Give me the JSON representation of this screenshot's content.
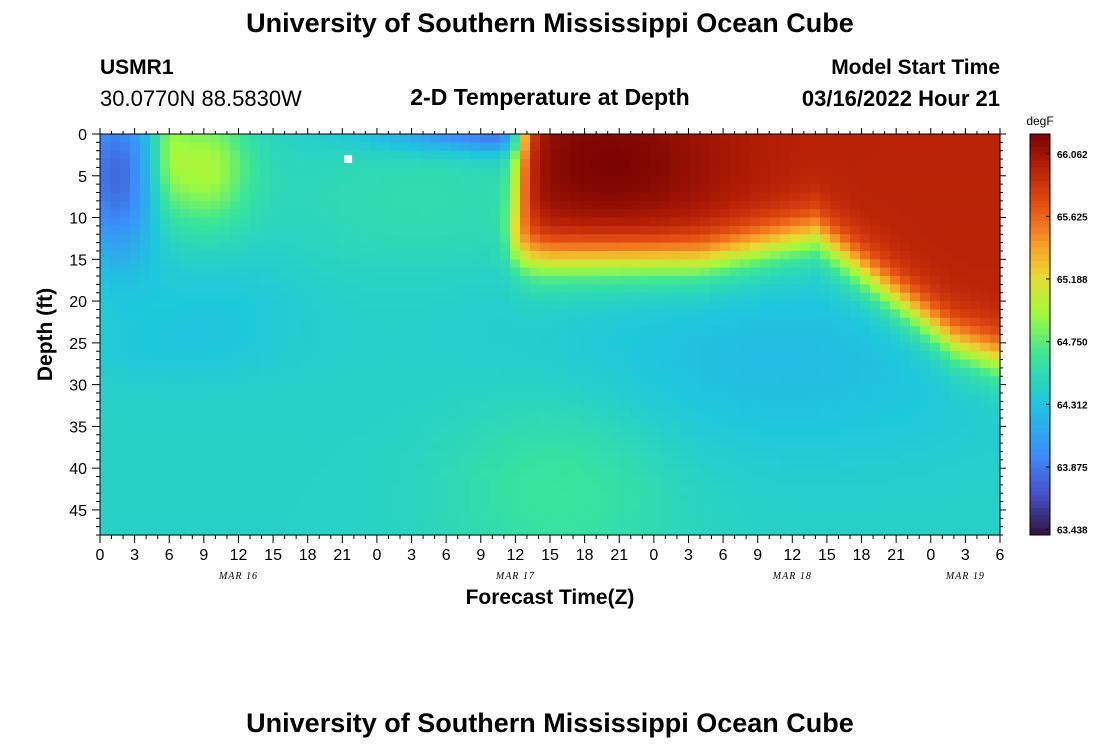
{
  "header": {
    "title": "University of Southern Mississippi Ocean Cube",
    "station_id": "USMR1",
    "station_coords": "30.0770N  88.5830W",
    "plot_subtitle": "2-D Temperature at Depth",
    "model_label": "Model Start Time",
    "model_time": "03/16/2022 Hour 21"
  },
  "footer": {
    "title": "University of Southern Mississippi Ocean Cube"
  },
  "chart_data": {
    "type": "heatmap",
    "title": "2-D Temperature at Depth",
    "xlabel": "Forecast Time(Z)",
    "ylabel": "Depth (ft)",
    "x_ticks": [
      "0",
      "3",
      "6",
      "9",
      "12",
      "15",
      "18",
      "21",
      "0",
      "3",
      "6",
      "9",
      "12",
      "15",
      "18",
      "21",
      "0",
      "3",
      "6",
      "9",
      "12",
      "15",
      "18",
      "21",
      "0",
      "3",
      "6"
    ],
    "x_range_hours": [
      0,
      78
    ],
    "date_labels": [
      {
        "hour": 12,
        "label": "MAR 16"
      },
      {
        "hour": 36,
        "label": "MAR 17"
      },
      {
        "hour": 60,
        "label": "MAR 18"
      },
      {
        "hour": 75,
        "label": "MAR 19"
      }
    ],
    "y_ticks": [
      0,
      5,
      10,
      15,
      20,
      25,
      30,
      35,
      40,
      45
    ],
    "y_range": [
      0,
      48
    ],
    "y_inverted": true,
    "colorbar": {
      "unit": "degF",
      "min": 63.4,
      "max": 66.2,
      "tick_labels": [
        "66.062",
        "65.625",
        "65.188",
        "64.750",
        "64.312",
        "63.875",
        "63.438"
      ],
      "colormap": "turbo"
    },
    "marker": {
      "hour": 21.5,
      "depth": 3,
      "label": ""
    },
    "notes": "Temperature field estimated from colors: warm (>65.9 degF) surface layer after Mar 17 15Z down to ~12-22 ft; cold (<63.9 degF) pockets near surface at hours 0-3 and around Mar 17 9-12Z; mid-depth ~25 ft around 64.2-64.3 degF; bottom 40-48 ft around 64.5-64.7 degF."
  }
}
